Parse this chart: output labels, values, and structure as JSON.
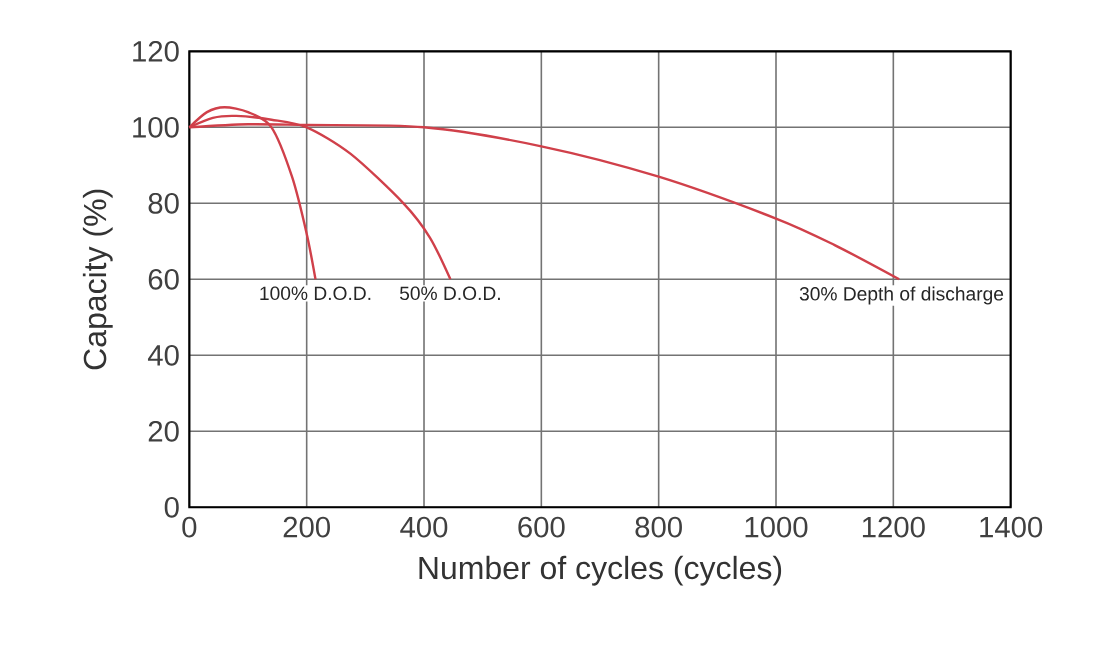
{
  "chart_data": {
    "type": "line",
    "xlabel": "Number of cycles (cycles)",
    "ylabel": "Capacity (%)",
    "series": [
      {
        "name": "100% D.O.D.",
        "color": "#d0404a",
        "x": [
          0,
          30,
          60,
          100,
          140,
          175,
          200,
          215
        ],
        "values": [
          100,
          104,
          105.3,
          104,
          100,
          87,
          72,
          60
        ]
      },
      {
        "name": "50% D.O.D.",
        "color": "#d0404a",
        "x": [
          0,
          40,
          80,
          140,
          200,
          275,
          365,
          410,
          445
        ],
        "values": [
          100,
          102.5,
          103,
          102,
          100,
          93,
          80,
          71,
          60
        ]
      },
      {
        "name": "30% Depth of discharge",
        "color": "#d0404a",
        "x": [
          0,
          100,
          200,
          400,
          600,
          800,
          1000,
          1100,
          1210
        ],
        "values": [
          100,
          100.8,
          100.6,
          100,
          95,
          87,
          76,
          69,
          60
        ]
      }
    ],
    "xlim": [
      0,
      1400
    ],
    "ylim": [
      0,
      120
    ],
    "xticks": [
      0,
      200,
      400,
      600,
      800,
      1000,
      1200,
      1400
    ],
    "yticks": [
      0,
      20,
      40,
      60,
      80,
      100,
      120
    ],
    "grid": true
  }
}
